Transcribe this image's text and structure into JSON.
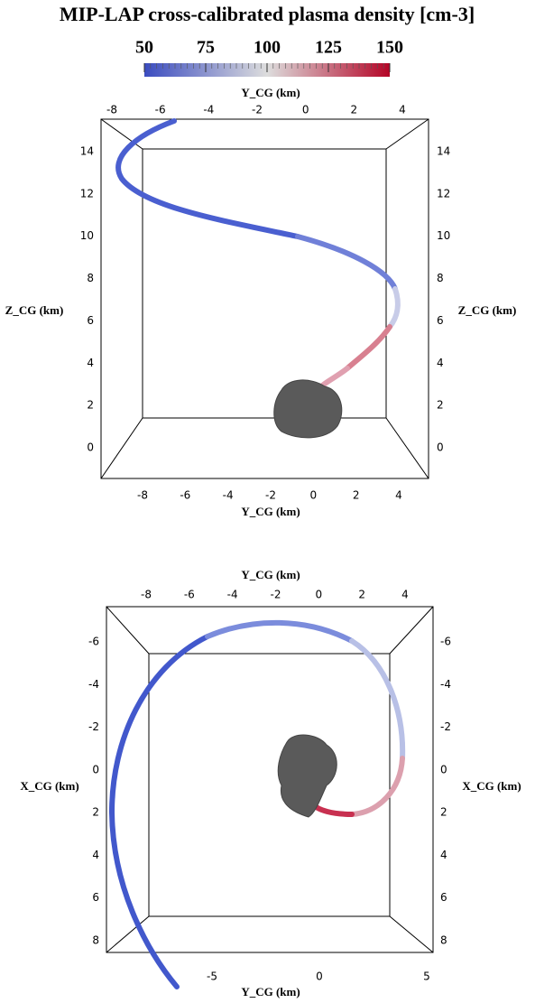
{
  "title": "MIP-LAP cross-calibrated plasma density [cm-3]",
  "colorbar": {
    "lim": [
      50,
      150
    ],
    "ticks": [
      50,
      75,
      100,
      125,
      150
    ],
    "colors": [
      "#3b4cc0",
      "#dddddd",
      "#b40426"
    ]
  },
  "panels": [
    {
      "x_label_top": "Y_CG (km)",
      "x_label_bottom": "Y_CG (km)",
      "y_label_left": "Z_CG (km)",
      "y_label_right": "Z_CG (km)",
      "xticks_top": [
        -8,
        -6,
        -4,
        -2,
        0,
        2,
        4
      ],
      "xticks_bottom": [
        -8,
        -6,
        -4,
        -2,
        0,
        2,
        4
      ],
      "yticks_left": [
        14,
        12,
        10,
        8,
        6,
        4,
        2,
        0
      ],
      "yticks_right": [
        14,
        12,
        10,
        8,
        6,
        4,
        2,
        0
      ]
    },
    {
      "x_label_top": "Y_CG (km)",
      "x_label_bottom": "Y_CG (km)",
      "y_label_left": "X_CG (km)",
      "y_label_right": "X_CG (km)",
      "xticks_top": [
        -8,
        -6,
        -4,
        -2,
        0,
        2,
        4
      ],
      "xticks_bottom": [
        -5,
        0,
        5
      ],
      "yticks_left": [
        -6,
        -4,
        -2,
        0,
        2,
        4,
        6,
        8
      ],
      "yticks_right": [
        -6,
        -4,
        -2,
        0,
        2,
        4,
        6,
        8
      ]
    }
  ]
}
